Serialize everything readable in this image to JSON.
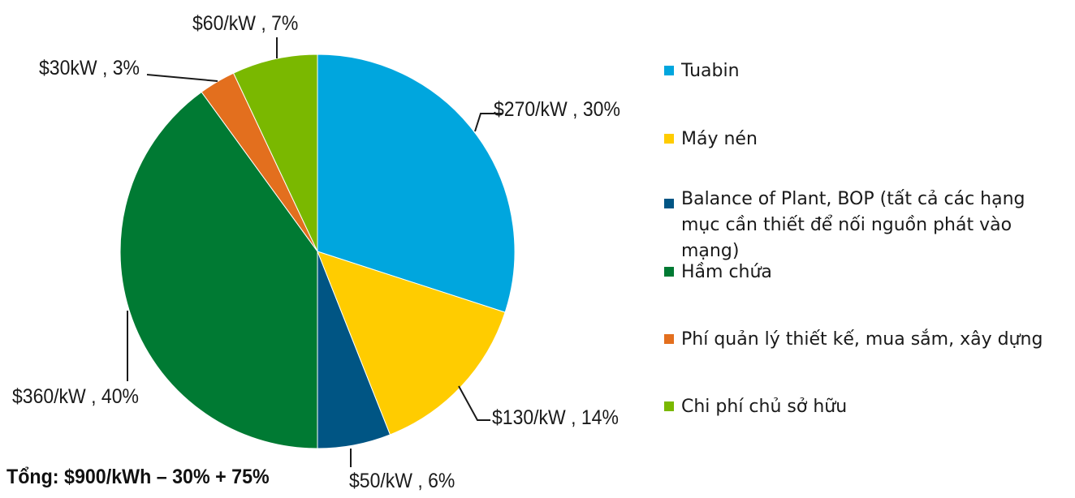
{
  "chart_data": {
    "type": "pie",
    "slices": [
      {
        "name": "Tuabin",
        "value": 30,
        "label": "$270/kW , 30%",
        "color": "#00a6de"
      },
      {
        "name": "Máy nén",
        "value": 14,
        "label": "$130/kW , 14%",
        "color": "#ffcc00"
      },
      {
        "name": "Balance of Plant, BOP (tất cả các hạng mục cần thiết để nối nguồn phát vào mạng)",
        "value": 6,
        "label": "$50/kW , 6%",
        "color": "#005584"
      },
      {
        "name": "Hầm chứa",
        "value": 40,
        "label": "$360/kW , 40%",
        "color": "#007a33"
      },
      {
        "name": "Phí quản lý thiết kế, mua sắm, xây dựng",
        "value": 3,
        "label": "$30kW , 3%",
        "color": "#e36f1e"
      },
      {
        "name": "Chi phí chủ sở hữu",
        "value": 7,
        "label": "$60/kW , 7%",
        "color": "#7ab800"
      }
    ],
    "legend_position": "right",
    "total_label": "Tổng: $900/kWh – 30% + 75%"
  }
}
